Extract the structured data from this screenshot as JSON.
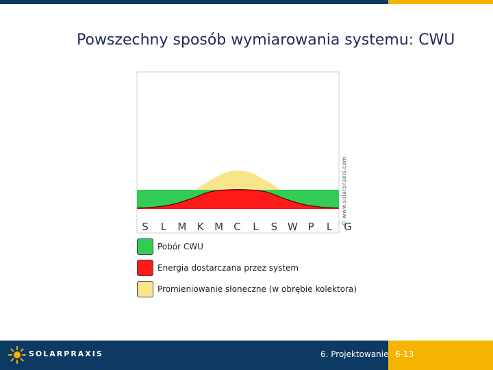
{
  "title": "Powszechny sposób wymiarowania systemu: CWU",
  "watermark": "© www.solarpraxis.com",
  "chart_data": {
    "type": "area",
    "categories": [
      "S",
      "L",
      "M",
      "K",
      "M",
      "C",
      "L",
      "S",
      "W",
      "P",
      "L",
      "G"
    ],
    "series": [
      {
        "name": "Pobór CWU",
        "color": "#33cc55",
        "values": [
          1,
          1,
          1,
          1,
          1,
          1,
          1,
          1,
          1,
          1,
          1,
          1
        ]
      },
      {
        "name": "Energia dostarczana przez system",
        "color": "#ff1a1a",
        "values": [
          0.05,
          0.1,
          0.25,
          0.55,
          0.9,
          1,
          1,
          0.9,
          0.55,
          0.25,
          0.1,
          0.05
        ]
      },
      {
        "name": "Promieniowanie słoneczne (w obrębie kolektora)",
        "color": "#f8e58a",
        "values": [
          0.05,
          0.15,
          0.4,
          0.9,
          1.5,
          1.95,
          1.95,
          1.5,
          0.9,
          0.4,
          0.15,
          0.05
        ]
      }
    ]
  },
  "legend": [
    {
      "label": "Pobór CWU",
      "color": "#33cc55"
    },
    {
      "label": "Energia dostarczana przez system",
      "color": "#ff1a1a"
    },
    {
      "label": "Promieniowanie słoneczne (w obrębie kolektora)",
      "color": "#f8e58a"
    }
  ],
  "footer": {
    "logo_text": "SOLARPRAXIS",
    "chapter": "6. Projektowanie",
    "page": "6-13"
  },
  "colors": {
    "navy": "#0d3a63",
    "gold": "#f5b400"
  }
}
